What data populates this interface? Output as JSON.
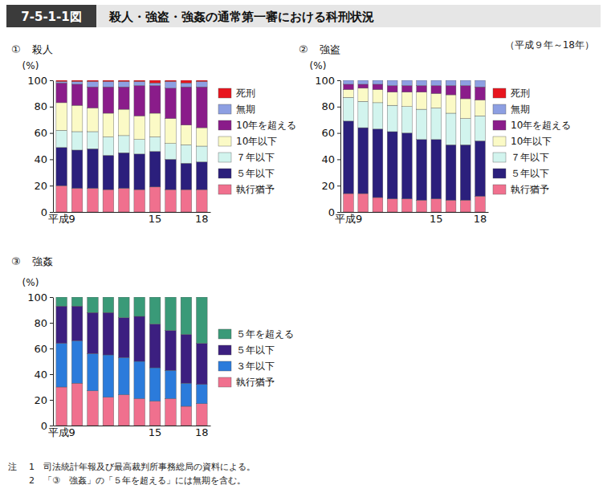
{
  "figure": {
    "number": "7-5-1-1図",
    "title": "殺人・強盗・強姦の通常第一審における科刑状況",
    "period": "（平成９年～18年）",
    "note_label": "注",
    "notes": [
      "1　司法統計年報及び最高裁判所事務総局の資料による。",
      "2　「③　強姦」の「５年を超える」には無期を含む。"
    ]
  },
  "chart_data": [
    {
      "type": "bar",
      "stacked": true,
      "number": "①",
      "title": "殺人",
      "y_label": "(%)",
      "legend": "right",
      "categories": [
        "平成9",
        null,
        null,
        null,
        null,
        null,
        "15",
        null,
        null,
        "18"
      ],
      "ylim": [
        0,
        100
      ],
      "yticks": [
        0,
        20,
        40,
        60,
        80,
        100
      ],
      "series": [
        {
          "name": "執行猶予",
          "color": "#f0708e",
          "values": [
            20,
            18,
            18,
            17,
            18,
            17,
            19,
            17,
            17,
            17
          ]
        },
        {
          "name": "５年以下",
          "color": "#2b1f7c",
          "values": [
            29,
            29,
            30,
            26,
            27,
            27,
            27,
            23,
            20,
            21
          ]
        },
        {
          "name": "７年以下",
          "color": "#d2f4ee",
          "values": [
            13,
            14,
            13,
            14,
            13,
            11,
            11,
            12,
            14,
            12
          ]
        },
        {
          "name": "10年以下",
          "color": "#fbfac6",
          "values": [
            21,
            20,
            18,
            18,
            20,
            18,
            18,
            19,
            15,
            14
          ]
        },
        {
          "name": "10年を超える",
          "color": "#8a1c8a",
          "values": [
            15,
            16,
            16,
            20,
            17,
            23,
            21,
            23,
            29,
            31
          ]
        },
        {
          "name": "無期",
          "color": "#8d9fe2",
          "values": [
            1,
            2,
            4,
            4,
            4,
            3,
            2,
            5,
            3,
            4
          ]
        },
        {
          "name": "死刑",
          "color": "#e8151e",
          "values": [
            1,
            1,
            1,
            1,
            1,
            1,
            2,
            1,
            2,
            1
          ]
        }
      ]
    },
    {
      "type": "bar",
      "stacked": true,
      "number": "②",
      "title": "強盗",
      "y_label": "(%)",
      "legend": "right",
      "categories": [
        "平成9",
        null,
        null,
        null,
        null,
        null,
        "15",
        null,
        null,
        "18"
      ],
      "ylim": [
        0,
        100
      ],
      "yticks": [
        0,
        20,
        40,
        60,
        80,
        100
      ],
      "series": [
        {
          "name": "執行猶予",
          "color": "#f0708e",
          "values": [
            14,
            14,
            11,
            10,
            10,
            9,
            10,
            9,
            9,
            12
          ]
        },
        {
          "name": "５年以下",
          "color": "#2b1f7c",
          "values": [
            55,
            50,
            52,
            51,
            50,
            46,
            45,
            42,
            42,
            42
          ]
        },
        {
          "name": "７年以下",
          "color": "#d2f4ee",
          "values": [
            18,
            20,
            20,
            20,
            20,
            23,
            24,
            24,
            20,
            19
          ]
        },
        {
          "name": "10年以下",
          "color": "#fbfac6",
          "values": [
            6,
            10,
            10,
            10,
            11,
            13,
            11,
            14,
            15,
            12
          ]
        },
        {
          "name": "10年を超える",
          "color": "#8a1c8a",
          "values": [
            4,
            3,
            4,
            5,
            5,
            5,
            6,
            7,
            10,
            10
          ]
        },
        {
          "name": "無期",
          "color": "#8d9fe2",
          "values": [
            3,
            3,
            3,
            4,
            4,
            4,
            4,
            4,
            4,
            5
          ]
        },
        {
          "name": "死刑",
          "color": "#e8151e",
          "values": [
            0,
            0,
            0,
            0,
            0,
            0,
            0,
            0,
            0,
            0
          ]
        }
      ]
    },
    {
      "type": "bar",
      "stacked": true,
      "number": "③",
      "title": "強姦",
      "y_label": "(%)",
      "legend": "right",
      "categories": [
        "平成9",
        null,
        null,
        null,
        null,
        null,
        "15",
        null,
        null,
        "18"
      ],
      "ylim": [
        0,
        100
      ],
      "yticks": [
        0,
        20,
        40,
        60,
        80,
        100
      ],
      "series": [
        {
          "name": "執行猶予",
          "color": "#f0708e",
          "values": [
            30,
            33,
            27,
            22,
            24,
            21,
            19,
            21,
            15,
            17
          ]
        },
        {
          "name": "３年以下",
          "color": "#2b7bdb",
          "values": [
            34,
            33,
            29,
            33,
            29,
            29,
            26,
            22,
            18,
            15
          ]
        },
        {
          "name": "５年以下",
          "color": "#3c1f80",
          "values": [
            29,
            27,
            32,
            33,
            31,
            35,
            34,
            31,
            38,
            32
          ]
        },
        {
          "name": "５年を超える",
          "color": "#3a9a78",
          "values": [
            7,
            7,
            12,
            12,
            16,
            15,
            21,
            26,
            29,
            36
          ]
        }
      ]
    }
  ]
}
